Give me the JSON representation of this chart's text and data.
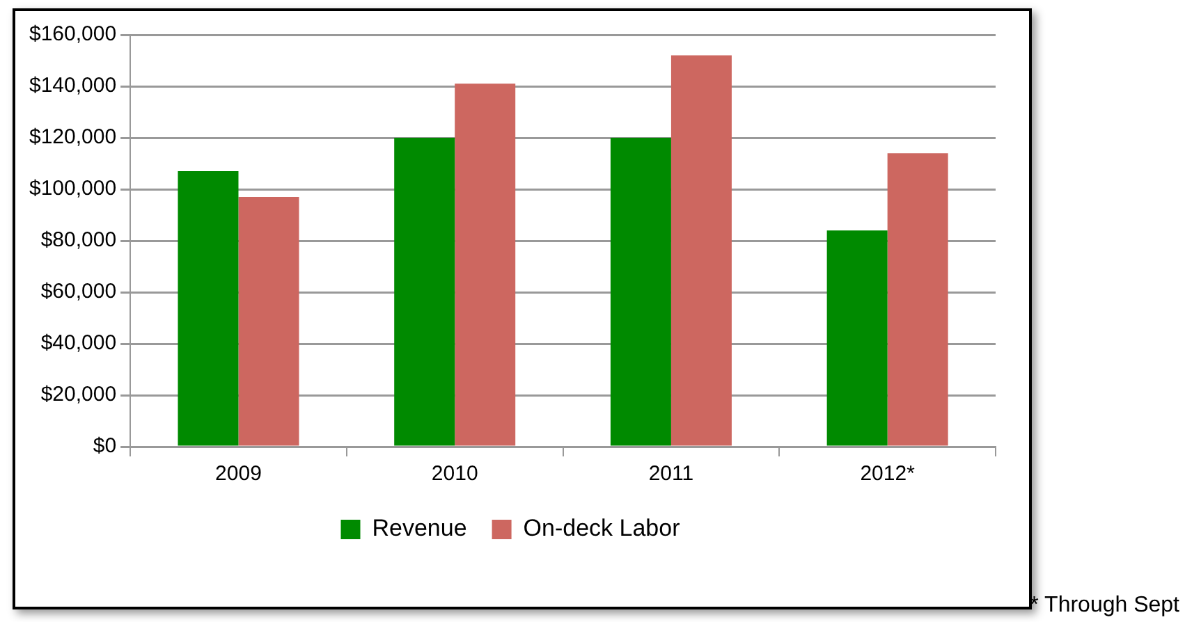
{
  "chart_data": {
    "type": "bar",
    "categories": [
      "2009",
      "2010",
      "2011",
      "2012*"
    ],
    "series": [
      {
        "name": "Revenue",
        "color": "#008a00",
        "values": [
          107000,
          120000,
          120000,
          84000
        ]
      },
      {
        "name": "On-deck Labor",
        "color": "#cd6760",
        "values": [
          97000,
          141000,
          152000,
          114000
        ]
      }
    ],
    "ylim": [
      0,
      160000
    ],
    "yticks": [
      {
        "value": 0,
        "label": "$0"
      },
      {
        "value": 20000,
        "label": "$20,000"
      },
      {
        "value": 40000,
        "label": "$40,000"
      },
      {
        "value": 60000,
        "label": "$60,000"
      },
      {
        "value": 80000,
        "label": "$80,000"
      },
      {
        "value": 100000,
        "label": "$100,000"
      },
      {
        "value": 120000,
        "label": "$120,000"
      },
      {
        "value": 140000,
        "label": "$140,000"
      },
      {
        "value": 160000,
        "label": "$160,000"
      }
    ],
    "grid": "y",
    "legend": "bottom",
    "annotations": [
      "* Through Sept"
    ]
  }
}
